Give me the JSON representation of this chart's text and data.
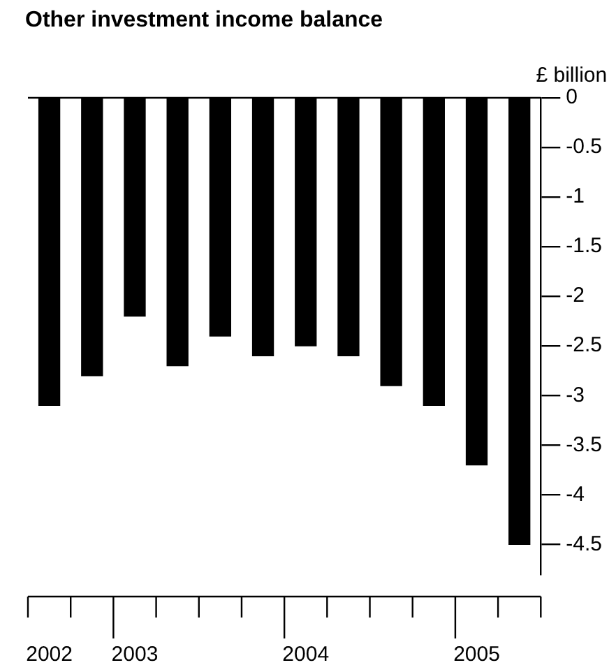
{
  "chart_data": {
    "type": "bar",
    "title": "Other investment income balance",
    "ylabel": "£ billion",
    "categories": [
      "2002",
      null,
      "2003",
      null,
      null,
      null,
      "2004",
      null,
      null,
      null,
      "2005",
      null
    ],
    "values": [
      -3.1,
      -2.8,
      -2.2,
      -2.7,
      -2.4,
      -2.6,
      -2.5,
      -2.6,
      -2.9,
      -3.1,
      -3.7,
      -4.5
    ],
    "color": "#000000",
    "ylim": [
      -4.8,
      0
    ],
    "yticks": [
      0,
      -0.5,
      -1,
      -1.5,
      -2,
      -2.5,
      -3,
      -3.5,
      -4,
      -4.5
    ],
    "grid": false,
    "legend": false
  }
}
